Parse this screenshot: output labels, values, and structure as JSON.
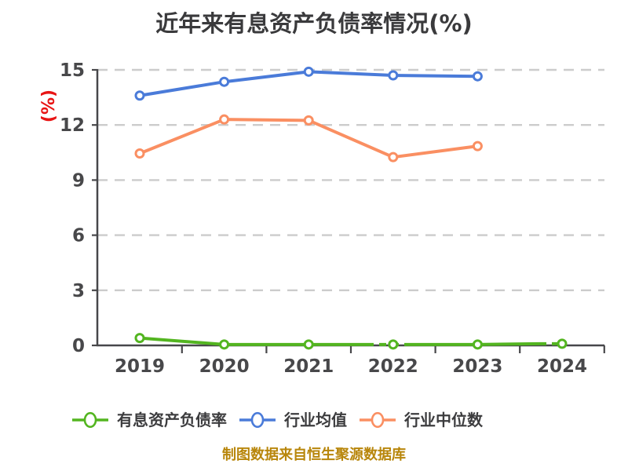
{
  "page": {
    "title": "近年来有息资产负债率情况(%)",
    "footer": "制图数据来自恒生聚源数据库"
  },
  "colors": {
    "background": "#ffffff",
    "title_text": "#3a3a3c",
    "tick_text": "#48484a",
    "axis_line": "#47474a",
    "gridline": "#cccccc",
    "y_unit_label": "#e81414",
    "footer_text": "#b8860b",
    "series_green": "#53b520",
    "series_blue": "#4a7bd9",
    "series_orange": "#fa8f62"
  },
  "chart_data": {
    "type": "line",
    "title": "近年来有息资产负债率情况(%)",
    "xlabel": "",
    "ylabel": "(%)",
    "x_categories": [
      "2019",
      "2020",
      "2021",
      "2022",
      "2023",
      "2024"
    ],
    "y_ticks": [
      0,
      3,
      6,
      9,
      12,
      15
    ],
    "ylim": [
      0,
      15
    ],
    "grid": "horizontal dashed light-gray",
    "legend_position": "bottom",
    "marker_style": "white-filled circle with colored ring",
    "series": [
      {
        "name": "有息资产负债率",
        "color": "#53b520",
        "x": [
          "2019",
          "2020",
          "2021",
          "2022",
          "2023",
          "2024"
        ],
        "values": [
          0.4,
          0.05,
          0.05,
          0.05,
          0.05,
          0.09
        ],
        "line_note": "solid, with short dashed segments around 2022 and just before 2024"
      },
      {
        "name": "行业均值",
        "color": "#4a7bd9",
        "x": [
          "2019",
          "2020",
          "2021",
          "2022",
          "2023"
        ],
        "values": [
          13.6,
          14.35,
          14.9,
          14.7,
          14.65
        ],
        "line_note": "solid"
      },
      {
        "name": "行业中位数",
        "color": "#fa8f62",
        "x": [
          "2019",
          "2020",
          "2021",
          "2022",
          "2023"
        ],
        "values": [
          10.45,
          12.3,
          12.25,
          10.25,
          10.85
        ],
        "line_note": "solid"
      }
    ]
  },
  "legend": {
    "items": [
      {
        "label": "有息资产负债率",
        "color": "#53b520"
      },
      {
        "label": "行业均值",
        "color": "#4a7bd9"
      },
      {
        "label": "行业中位数",
        "color": "#fa8f62"
      }
    ]
  }
}
